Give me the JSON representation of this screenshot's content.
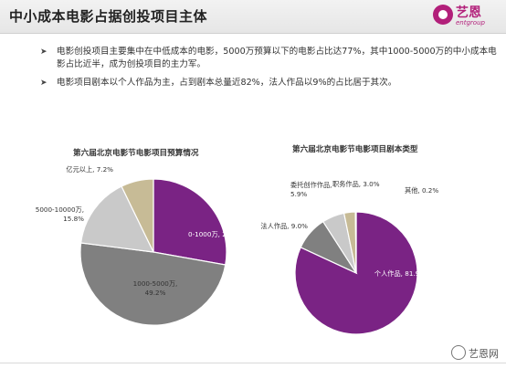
{
  "header": {
    "title": "中小成本电影占据创投项目主体"
  },
  "logo": {
    "brand": "艺恩",
    "sub": "entgroup",
    "icon": "entgroup-logo-icon",
    "color": "#b21f7a"
  },
  "bullets": [
    "电影创投项目主要集中在中低成本的电影，5000万预算以下的电影占比达77%，其中1000-5000万的中小成本电影占比近半，成为创投项目的主力军。",
    "电影项目剧本以个人作品为主，占到剧本总量近82%，法人作品以9%的占比居于其次。"
  ],
  "footer": {
    "wechat": "艺恩网",
    "icon": "wechat-icon"
  },
  "chart_data": [
    {
      "type": "pie",
      "title": "第六届北京电影节电影项目预算情况",
      "categories": [
        "0-1000万",
        "1000-5000万",
        "5000-10000万",
        "亿元以上"
      ],
      "values": [
        27.8,
        49.2,
        15.8,
        7.2
      ],
      "labels": [
        "0-1000万, 27.8%",
        "1000-5000万,",
        "5000-10000万,",
        "亿元以上, 7.2%"
      ],
      "labels2": [
        "",
        "49.2%",
        "15.8%",
        ""
      ],
      "colors": [
        "#7a2384",
        "#808080",
        "#c9c9c9",
        "#c7bb96"
      ]
    },
    {
      "type": "pie",
      "title": "第六届北京电影节电影项目剧本类型",
      "categories": [
        "个人作品",
        "法人作品",
        "委托创作作品",
        "职务作品",
        "其他"
      ],
      "values": [
        81.9,
        9.0,
        5.9,
        3.0,
        0.2
      ],
      "labels": [
        "个人作品, 81.9%",
        "法人作品, 9.0%",
        "委托创作作品,",
        "职务作品, 3.0%",
        "其他, 0.2%"
      ],
      "labels2": [
        "",
        "",
        "5.9%",
        "",
        ""
      ],
      "colors": [
        "#7a2384",
        "#808080",
        "#c9c9c9",
        "#c7bb96",
        "#e8e8e8"
      ]
    }
  ]
}
